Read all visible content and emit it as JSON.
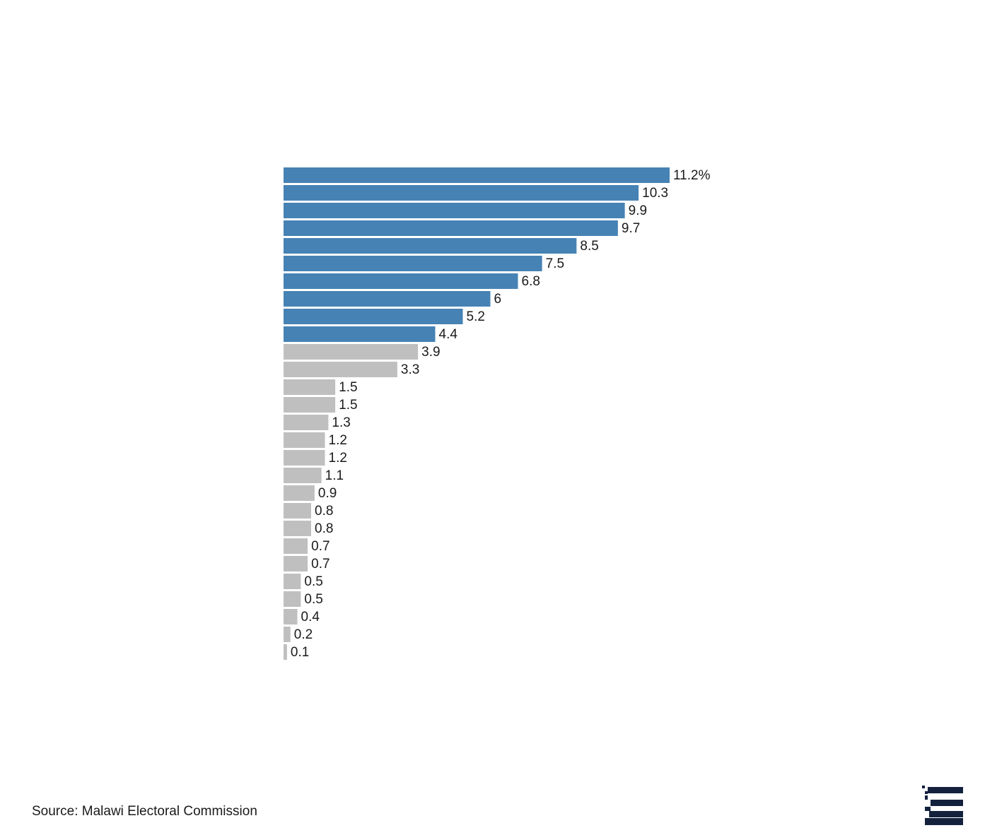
{
  "source": "Source: Malawi Electoral Commission",
  "colors": {
    "highlight": "#4682b4",
    "muted": "#bfbfbf",
    "logo": "#14213d"
  },
  "logo_icon": "publisher-logo-icon",
  "chart_data": {
    "type": "bar",
    "orientation": "horizontal",
    "unit": "%",
    "values": [
      11.2,
      10.3,
      9.9,
      9.7,
      8.5,
      7.5,
      6.8,
      6,
      5.2,
      4.4,
      3.9,
      3.3,
      1.5,
      1.5,
      1.3,
      1.2,
      1.2,
      1.1,
      0.9,
      0.8,
      0.8,
      0.7,
      0.7,
      0.5,
      0.5,
      0.4,
      0.2,
      0.1
    ],
    "labels": [
      "11.2%",
      "10.3",
      "9.9",
      "9.7",
      "8.5",
      "7.5",
      "6.8",
      "6",
      "5.2",
      "4.4",
      "3.9",
      "3.3",
      "1.5",
      "1.5",
      "1.3",
      "1.2",
      "1.2",
      "1.1",
      "0.9",
      "0.8",
      "0.8",
      "0.7",
      "0.7",
      "0.5",
      "0.5",
      "0.4",
      "0.2",
      "0.1"
    ],
    "highlighted_count": 10,
    "xlim": [
      0,
      11.2
    ],
    "grid": false,
    "legend": "none"
  }
}
